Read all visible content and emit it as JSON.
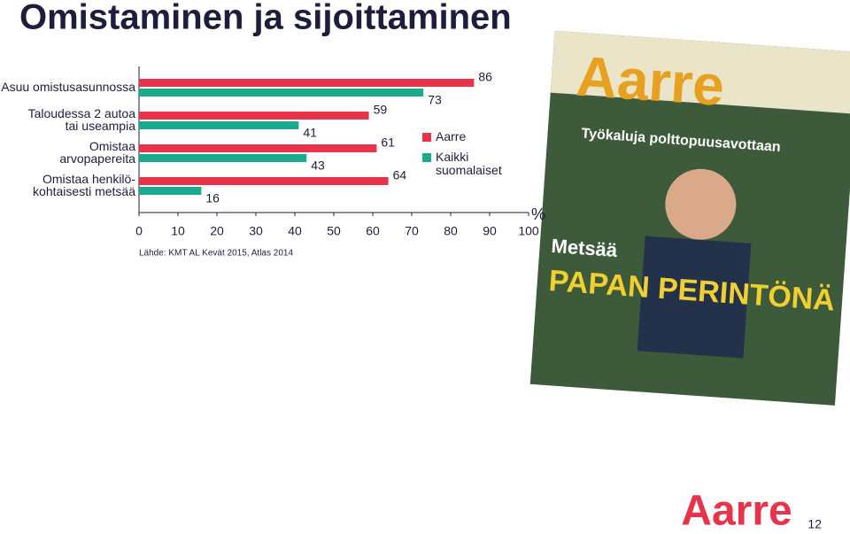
{
  "chart_data": {
    "type": "hbar",
    "title": "Omistaminen ja sijoittaminen",
    "categories": [
      "Asuu omistusasunnossa",
      "Taloudessa 2 autoa\ntai useampia",
      "Omistaa\narvopapereita",
      "Omistaa henkilö-\nkohtaisesti metsää"
    ],
    "series": [
      {
        "name": "Aarre",
        "color": "#e8334a",
        "values": [
          86,
          59,
          61,
          64
        ]
      },
      {
        "name": "Kaikki\nsuomalaiset",
        "color": "#1aaa8c",
        "values": [
          73,
          41,
          43,
          16
        ]
      }
    ],
    "xlim": [
      0,
      100
    ],
    "xticks": [
      0,
      10,
      20,
      30,
      40,
      50,
      60,
      70,
      80,
      90,
      100
    ],
    "unit": "%",
    "source": "Lähde: KMT AL Kevät 2015, Atlas 2014"
  },
  "slide": {
    "logo": "Aarre",
    "page_number": "12",
    "cover": {
      "masthead": "Aarre",
      "headline_small": "Metsää",
      "headline": "PAPAN PERINTÖNÄ",
      "teaser": "Työkaluja polttopuusavottaan"
    }
  }
}
